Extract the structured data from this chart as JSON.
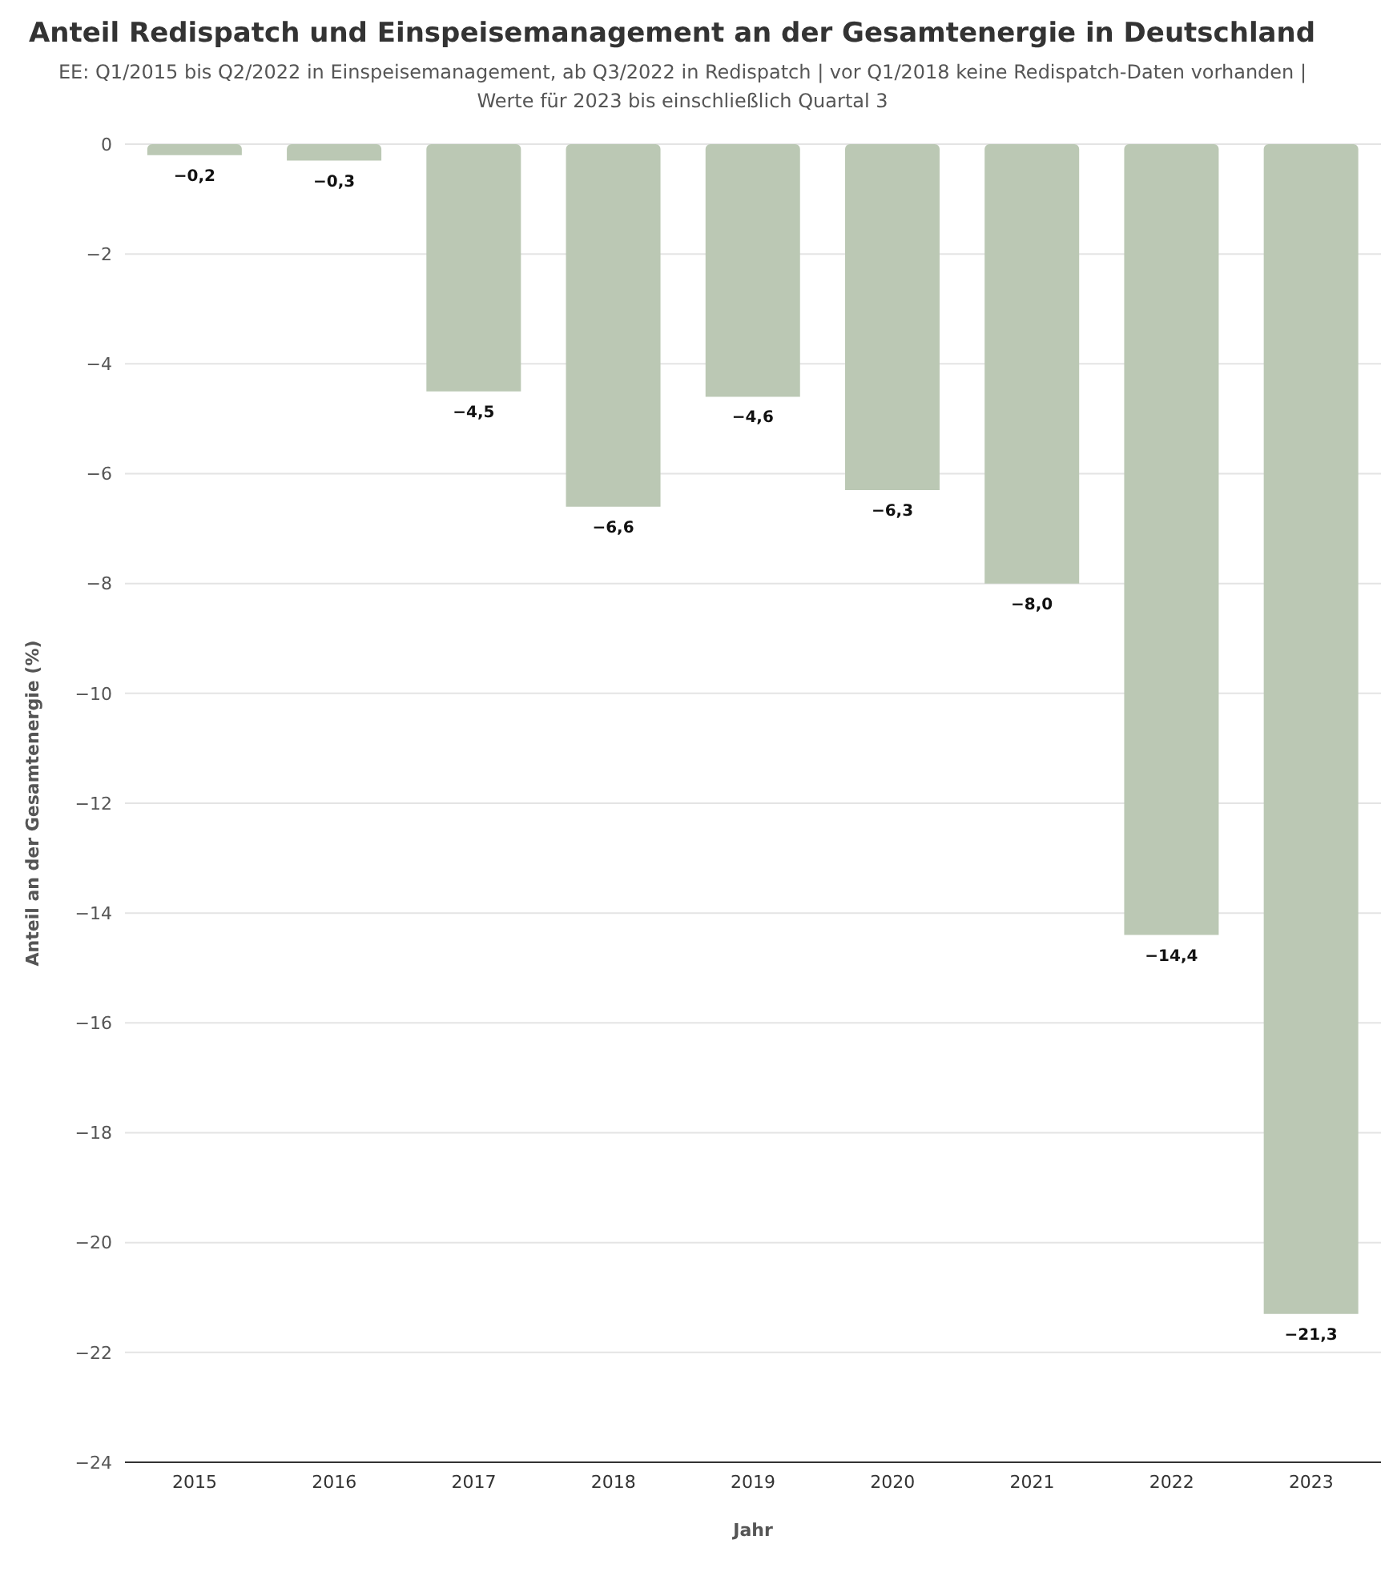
{
  "chart_data": {
    "type": "bar",
    "title": "Anteil Redispatch und Einspeisemanagement an der Gesamtenergie in Deutschland",
    "subtitle": "EE: Q1/2015 bis Q2/2022 in Einspeisemanagement, ab Q3/2022 in Redispatch | vor Q1/2018 keine Redispatch-Daten vorhanden | Werte für 2023 bis einschließlich Quartal 3",
    "xlabel": "Jahr",
    "ylabel": "Anteil an der Gesamtenergie (%)",
    "categories": [
      "2015",
      "2016",
      "2017",
      "2018",
      "2019",
      "2020",
      "2021",
      "2022",
      "2023"
    ],
    "values": [
      -0.2,
      -0.3,
      -4.5,
      -6.6,
      -4.6,
      -6.3,
      -8.0,
      -14.4,
      -21.3
    ],
    "value_labels": [
      "−0,2",
      "−0,3",
      "−4,5",
      "−6,6",
      "−4,6",
      "−6,3",
      "−8,0",
      "−14,4",
      "−21,3"
    ],
    "color": "#bbc8b4",
    "ylim": [
      -24,
      0
    ],
    "yticks": [
      {
        "value": 0,
        "label": "0"
      },
      {
        "value": -2,
        "label": "−2"
      },
      {
        "value": -4,
        "label": "−4"
      },
      {
        "value": -6,
        "label": "−6"
      },
      {
        "value": -8,
        "label": "−8"
      },
      {
        "value": -10,
        "label": "−10"
      },
      {
        "value": -12,
        "label": "−12"
      },
      {
        "value": -14,
        "label": "−14"
      },
      {
        "value": -16,
        "label": "−16"
      },
      {
        "value": -18,
        "label": "−18"
      },
      {
        "value": -20,
        "label": "−20"
      },
      {
        "value": -22,
        "label": "−22"
      },
      {
        "value": -24,
        "label": "−24"
      }
    ],
    "grid": "y"
  }
}
